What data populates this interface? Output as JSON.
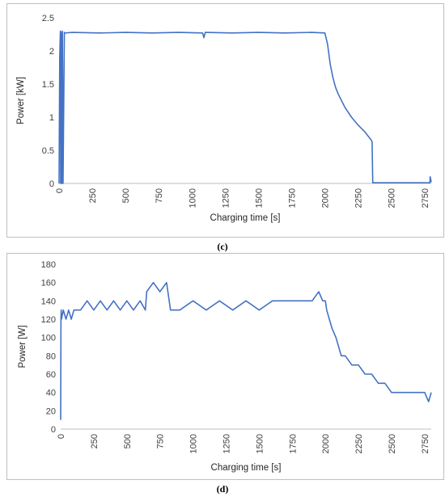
{
  "chart_data": [
    {
      "id": "c",
      "type": "line",
      "caption": "(c)",
      "title": "",
      "xlabel": "Charging time [s]",
      "ylabel": "Power [kW]",
      "xlim": [
        0,
        2800
      ],
      "ylim": [
        0,
        2.5
      ],
      "x_ticks": [
        "0",
        "250",
        "500",
        "750",
        "1000",
        "1250",
        "1500",
        "1750",
        "2000",
        "2250",
        "2500",
        "2750"
      ],
      "y_ticks": [
        "0",
        "0.5",
        "1",
        "1.5",
        "2",
        "2.5"
      ],
      "grid": false,
      "legend": "none",
      "color": "#4472C4",
      "series": [
        {
          "x": [
            0,
            5,
            10,
            12,
            15,
            20,
            25,
            30,
            40,
            45,
            100,
            300,
            500,
            700,
            900,
            1080,
            1090,
            1100,
            1300,
            1500,
            1700,
            1900,
            2000,
            2020,
            2040,
            2060,
            2080,
            2100,
            2150,
            2200,
            2250,
            2300,
            2350,
            2355,
            2360,
            2700,
            2790,
            2792,
            2800
          ],
          "y": [
            0,
            1.9,
            2.3,
            0,
            2.28,
            0,
            2.3,
            0,
            2.28,
            2.27,
            2.28,
            2.27,
            2.28,
            2.27,
            2.28,
            2.27,
            2.2,
            2.28,
            2.27,
            2.28,
            2.27,
            2.28,
            2.27,
            2.1,
            1.8,
            1.6,
            1.45,
            1.35,
            1.15,
            1.0,
            0.88,
            0.78,
            0.65,
            0.63,
            0.01,
            0.01,
            0.01,
            0.1,
            0.02
          ]
        }
      ]
    },
    {
      "id": "d",
      "type": "line",
      "caption": "(d)",
      "title": "",
      "xlabel": "Charging time [s]",
      "ylabel": "Power [W]",
      "xlim": [
        0,
        2800
      ],
      "ylim": [
        0,
        180
      ],
      "x_ticks": [
        "0",
        "250",
        "500",
        "750",
        "1000",
        "1250",
        "1500",
        "1750",
        "2000",
        "2250",
        "2500",
        "2750"
      ],
      "y_ticks": [
        "0",
        "20",
        "40",
        "60",
        "80",
        "100",
        "120",
        "140",
        "160",
        "180"
      ],
      "grid": false,
      "legend": "none",
      "color": "#4472C4",
      "series": [
        {
          "x": [
            0,
            2,
            4,
            6,
            20,
            40,
            60,
            80,
            100,
            150,
            200,
            250,
            300,
            350,
            400,
            450,
            500,
            550,
            600,
            640,
            650,
            700,
            750,
            800,
            820,
            830,
            900,
            1000,
            1100,
            1200,
            1300,
            1400,
            1500,
            1600,
            1700,
            1800,
            1900,
            1950,
            1980,
            2000,
            2010,
            2030,
            2050,
            2080,
            2100,
            2120,
            2150,
            2200,
            2250,
            2300,
            2350,
            2400,
            2450,
            2500,
            2550,
            2600,
            2650,
            2700,
            2750,
            2780,
            2800
          ],
          "y": [
            10,
            120,
            130,
            120,
            130,
            120,
            130,
            120,
            130,
            130,
            140,
            130,
            140,
            130,
            140,
            130,
            140,
            130,
            140,
            130,
            150,
            160,
            150,
            160,
            140,
            130,
            130,
            140,
            130,
            140,
            130,
            140,
            130,
            140,
            140,
            140,
            140,
            150,
            140,
            140,
            130,
            120,
            110,
            100,
            90,
            80,
            80,
            70,
            70,
            60,
            60,
            50,
            50,
            40,
            40,
            40,
            40,
            40,
            40,
            30,
            40
          ]
        }
      ]
    }
  ]
}
